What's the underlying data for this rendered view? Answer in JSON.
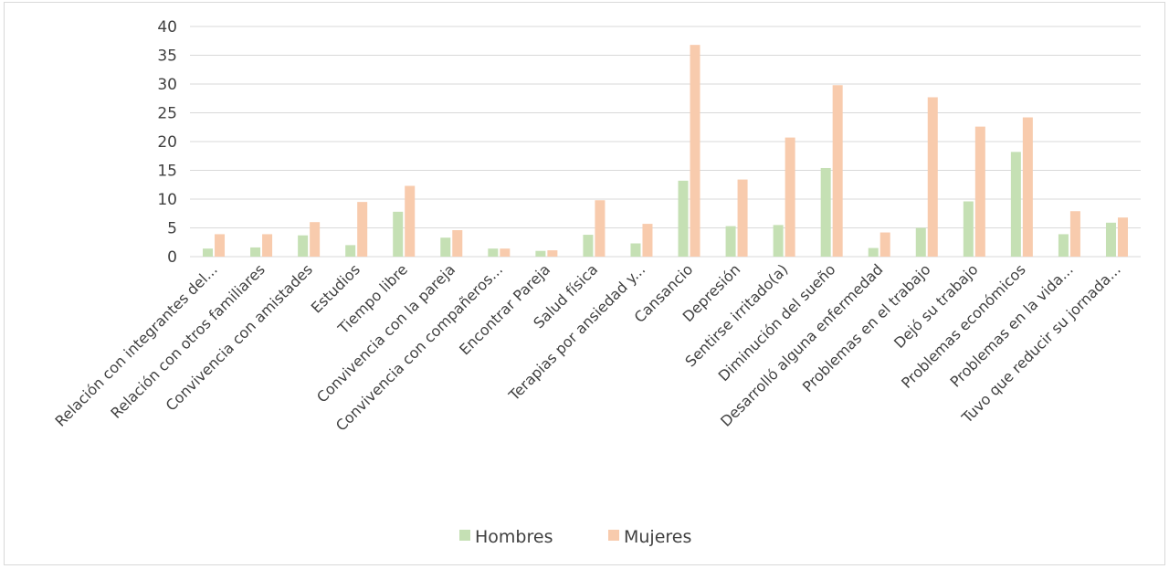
{
  "chart_data": {
    "type": "bar",
    "title": "",
    "xlabel": "",
    "ylabel": "",
    "ylim": [
      0,
      40
    ],
    "yticks": [
      0,
      5,
      10,
      15,
      20,
      25,
      30,
      35,
      40
    ],
    "grid": true,
    "legend_position": "bottom",
    "categories": [
      "Relación con integrantes del...",
      "Relación con otros familiares",
      "Convivencia con amistades",
      "Estudios",
      "Tiempo libre",
      "Convivencia con la pareja",
      "Convivencia con compañeros...",
      "Encontrar Pareja",
      "Salud física",
      "Terapias por ansiedad y...",
      "Cansancio",
      "Depresión",
      "Sentirse irritado(a)",
      "Diminución del sueño",
      "Desarrolló alguna enfermedad",
      "Problemas en el trabajo",
      "Dejó su trabajo",
      "Problemas económicos",
      "Problemas en la vida...",
      "Tuvo que reducir su jornada..."
    ],
    "series": [
      {
        "name": "Hombres",
        "color": "#c5e0b4",
        "values": [
          1.4,
          1.6,
          3.7,
          2.0,
          7.8,
          3.3,
          1.4,
          1.0,
          3.8,
          2.3,
          13.2,
          5.3,
          5.5,
          15.4,
          1.5,
          5.0,
          9.6,
          18.2,
          3.9,
          5.9
        ]
      },
      {
        "name": "Mujeres",
        "color": "#f8cbad",
        "values": [
          3.9,
          3.9,
          6.0,
          9.5,
          12.3,
          4.6,
          1.4,
          1.1,
          9.8,
          5.7,
          36.8,
          13.4,
          20.7,
          29.8,
          4.2,
          27.7,
          22.6,
          24.2,
          7.9,
          6.8
        ]
      }
    ]
  }
}
